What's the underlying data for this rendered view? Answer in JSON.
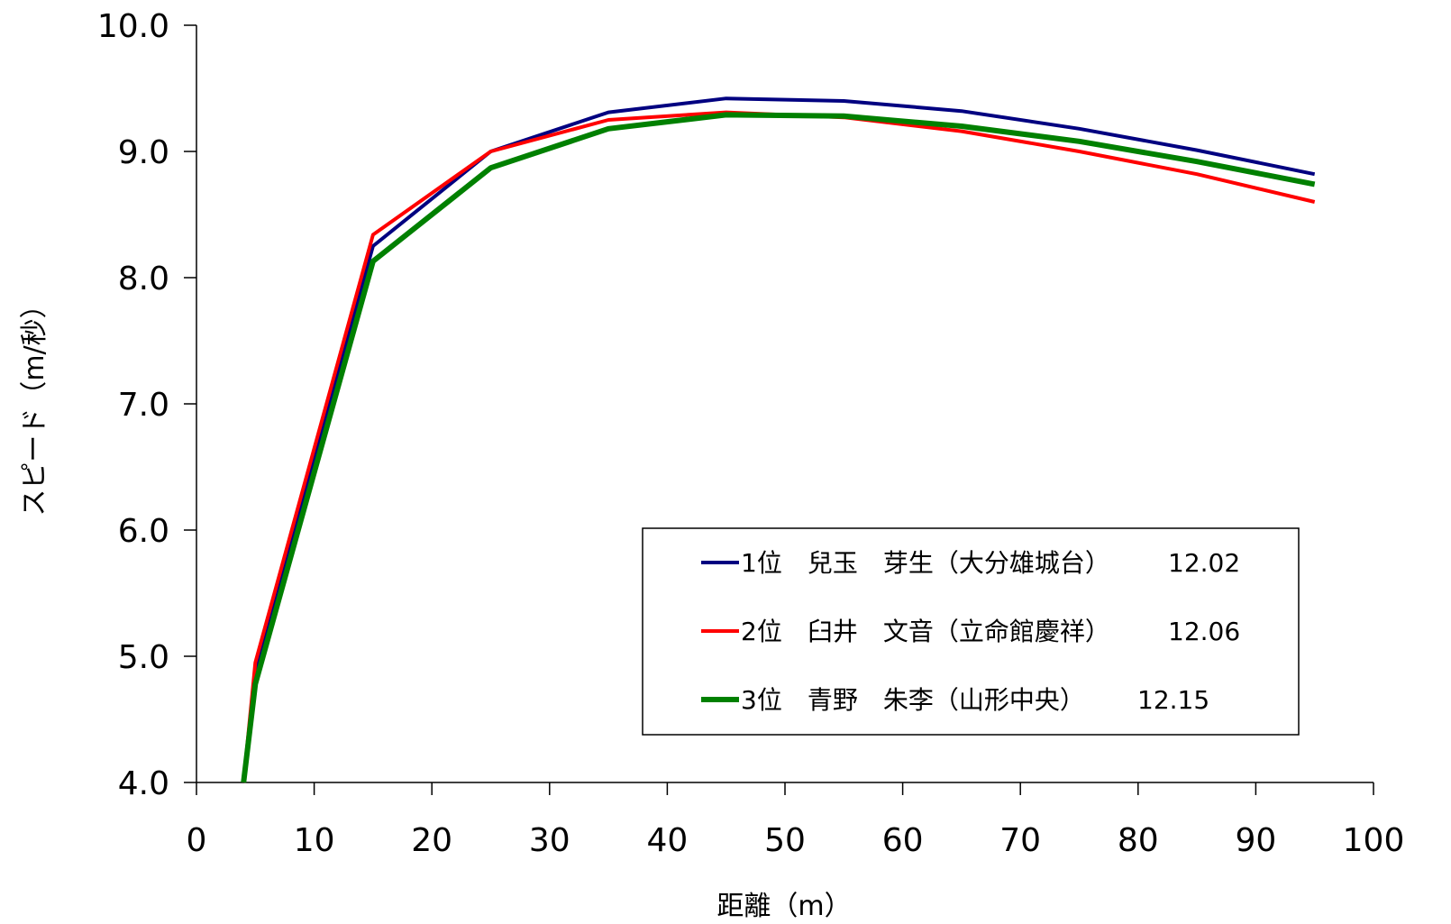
{
  "chart_data": {
    "type": "line",
    "title": "",
    "xlabel": "距離（m）",
    "ylabel": "スピード（m/秒）",
    "xlim": [
      0,
      100
    ],
    "ylim": [
      4.0,
      10.0
    ],
    "xticks": [
      0,
      10,
      20,
      30,
      40,
      50,
      60,
      70,
      80,
      90,
      100
    ],
    "xtick_labels": [
      "0",
      "10",
      "20",
      "30",
      "40",
      "50",
      "60",
      "70",
      "80",
      "90",
      "100"
    ],
    "yticks": [
      4.0,
      5.0,
      6.0,
      7.0,
      8.0,
      9.0,
      10.0
    ],
    "ytick_labels": [
      "4.0",
      "5.0",
      "6.0",
      "7.0",
      "8.0",
      "9.0",
      "10.0"
    ],
    "grid": false,
    "legend_position": "bottom-right inside",
    "x": [
      4,
      5,
      15,
      25,
      35,
      45,
      55,
      65,
      75,
      85,
      95
    ],
    "series": [
      {
        "name": "1位　兒玉　芽生（大分雄城台）",
        "time": "12.02",
        "color": "#000080",
        "width": 4,
        "values": [
          4.0,
          4.9,
          8.25,
          9.0,
          9.31,
          9.42,
          9.4,
          9.32,
          9.18,
          9.01,
          8.82
        ]
      },
      {
        "name": "2位　臼井　文音（立命館慶祥）",
        "time": "12.06",
        "color": "#FF0000",
        "width": 4,
        "values": [
          4.0,
          4.95,
          8.34,
          9.0,
          9.25,
          9.31,
          9.27,
          9.16,
          9.0,
          8.82,
          8.6
        ]
      },
      {
        "name": "3位　青野　朱李（山形中央）",
        "time": "12.15",
        "color": "#008000",
        "width": 6,
        "values": [
          4.0,
          4.78,
          8.13,
          8.87,
          9.18,
          9.29,
          9.28,
          9.2,
          9.08,
          8.92,
          8.74
        ]
      }
    ]
  }
}
